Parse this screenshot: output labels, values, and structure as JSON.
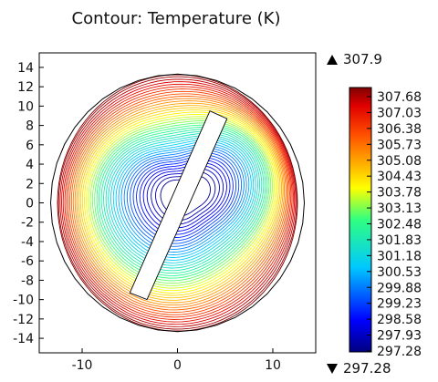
{
  "chart_data": {
    "type": "contour",
    "title": "Contour: Temperature (K)",
    "xlim": [
      -14.5,
      14.5
    ],
    "ylim": [
      -15.5,
      15.5
    ],
    "x_ticks": [
      -10,
      0,
      10
    ],
    "y_ticks": [
      14,
      12,
      10,
      8,
      6,
      4,
      2,
      0,
      -2,
      -4,
      -6,
      -8,
      -10,
      -12,
      -14
    ],
    "tick_labels_x": [
      "-10",
      "0",
      "10"
    ],
    "tick_labels_y": [
      "14",
      "12",
      "10",
      "8",
      "6",
      "4",
      "2",
      "0",
      "-2",
      "-4",
      "-6",
      "-8",
      "-10",
      "-12",
      "-14"
    ],
    "domain": {
      "shape": "disk",
      "radius": 13.3
    },
    "hole": {
      "shape": "slanted rectangle",
      "corners": [
        [
          -5,
          -9.3
        ],
        [
          -3.2,
          -10
        ],
        [
          5.2,
          8.7
        ],
        [
          3.4,
          9.5
        ]
      ]
    },
    "colorbar": {
      "colormap": "rainbow",
      "max": "307.9",
      "min": "297.28",
      "labels": [
        "307.68",
        "307.03",
        "306.38",
        "305.73",
        "305.08",
        "304.43",
        "303.78",
        "303.13",
        "302.48",
        "301.83",
        "301.18",
        "300.53",
        "299.88",
        "299.23",
        "298.58",
        "297.93",
        "297.28"
      ]
    }
  }
}
